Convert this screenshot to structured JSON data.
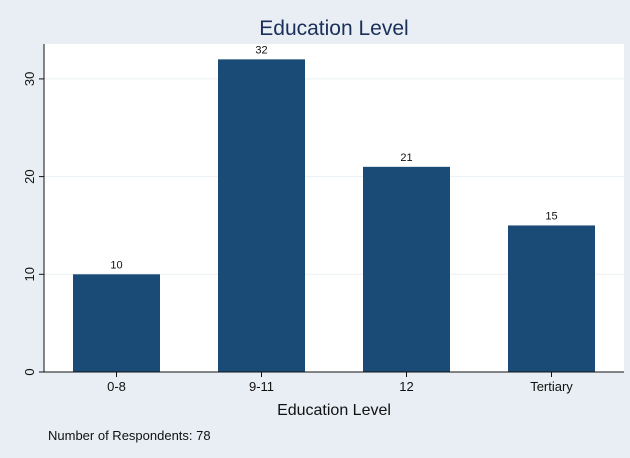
{
  "chart_data": {
    "type": "bar",
    "title": "Education Level",
    "xlabel": "Education Level",
    "ylabel": "",
    "categories": [
      "0-8",
      "9-11",
      "12",
      "Tertiary"
    ],
    "values": [
      10,
      32,
      21,
      15
    ],
    "data_labels": [
      "10",
      "32",
      "21",
      "15"
    ],
    "ylim": [
      0,
      32
    ],
    "yticks": [
      0,
      10,
      20,
      30
    ],
    "ytick_labels": [
      "0",
      "10",
      "20",
      "30"
    ],
    "grid": true,
    "note": "Number of Respondents: 78"
  },
  "colors": {
    "background": "#e8eef3",
    "plot_background": "#ffffff",
    "bar": "#1a4a76",
    "grid": "#eaf0f4",
    "axis": "#111111",
    "title": "#1a2f5a"
  }
}
